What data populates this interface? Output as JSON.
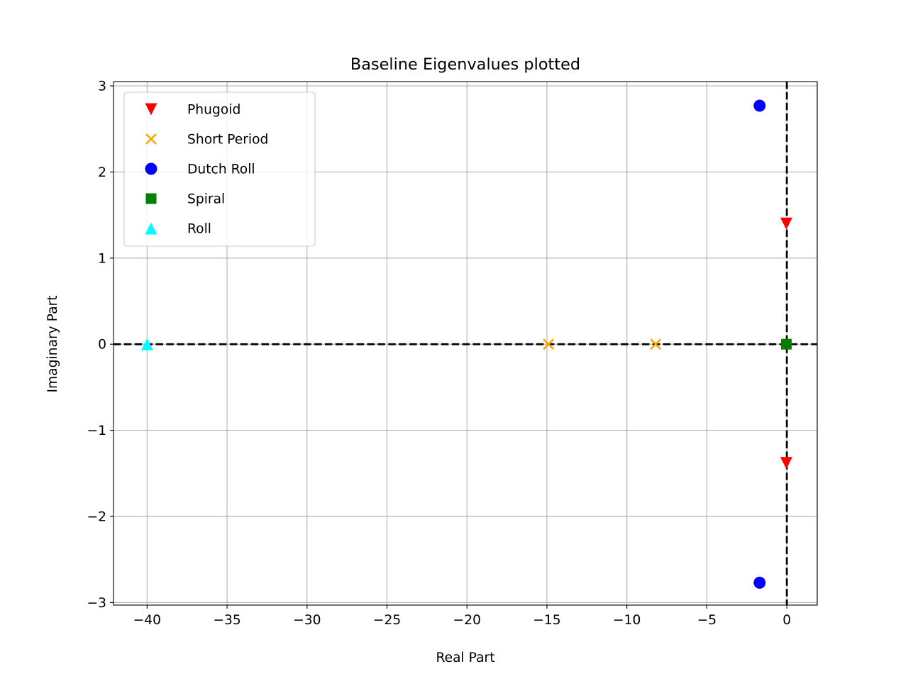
{
  "chart_data": {
    "type": "scatter",
    "title": "Baseline Eigenvalues plotted",
    "xlabel": "Real Part",
    "ylabel": "Imaginary Part",
    "xlim": [
      -42.1,
      1.9
    ],
    "ylim": [
      -3.03,
      3.05
    ],
    "xticks": [
      -40,
      -35,
      -30,
      -25,
      -20,
      -15,
      -10,
      -5,
      0
    ],
    "xtick_labels": [
      "−40",
      "−35",
      "−30",
      "−25",
      "−20",
      "−15",
      "−10",
      "−5",
      "0"
    ],
    "yticks": [
      -3,
      -2,
      -1,
      0,
      1,
      2,
      3
    ],
    "ytick_labels": [
      "−3",
      "−2",
      "−1",
      "0",
      "1",
      "2",
      "3"
    ],
    "grid": true,
    "legend_position": "top-left",
    "reference_lines": {
      "x": 0,
      "y": 0,
      "style": "dashed",
      "color": "#000000"
    },
    "series": [
      {
        "name": "Phugoid",
        "marker": "triangle-down",
        "color": "#ff0000",
        "points": [
          [
            -0.03,
            1.4
          ],
          [
            -0.03,
            -1.38
          ]
        ]
      },
      {
        "name": "Short Period",
        "marker": "x",
        "color": "#ffa500",
        "points": [
          [
            -14.9,
            0.0
          ],
          [
            -8.2,
            0.0
          ]
        ]
      },
      {
        "name": "Dutch Roll",
        "marker": "circle",
        "color": "#0000ff",
        "points": [
          [
            -1.7,
            2.77
          ],
          [
            -1.7,
            -2.77
          ]
        ]
      },
      {
        "name": "Spiral",
        "marker": "square",
        "color": "#008000",
        "points": [
          [
            -0.03,
            0.0
          ]
        ]
      },
      {
        "name": "Roll",
        "marker": "triangle-up",
        "color": "#00ffff",
        "points": [
          [
            -40.0,
            0.0
          ]
        ]
      }
    ]
  }
}
